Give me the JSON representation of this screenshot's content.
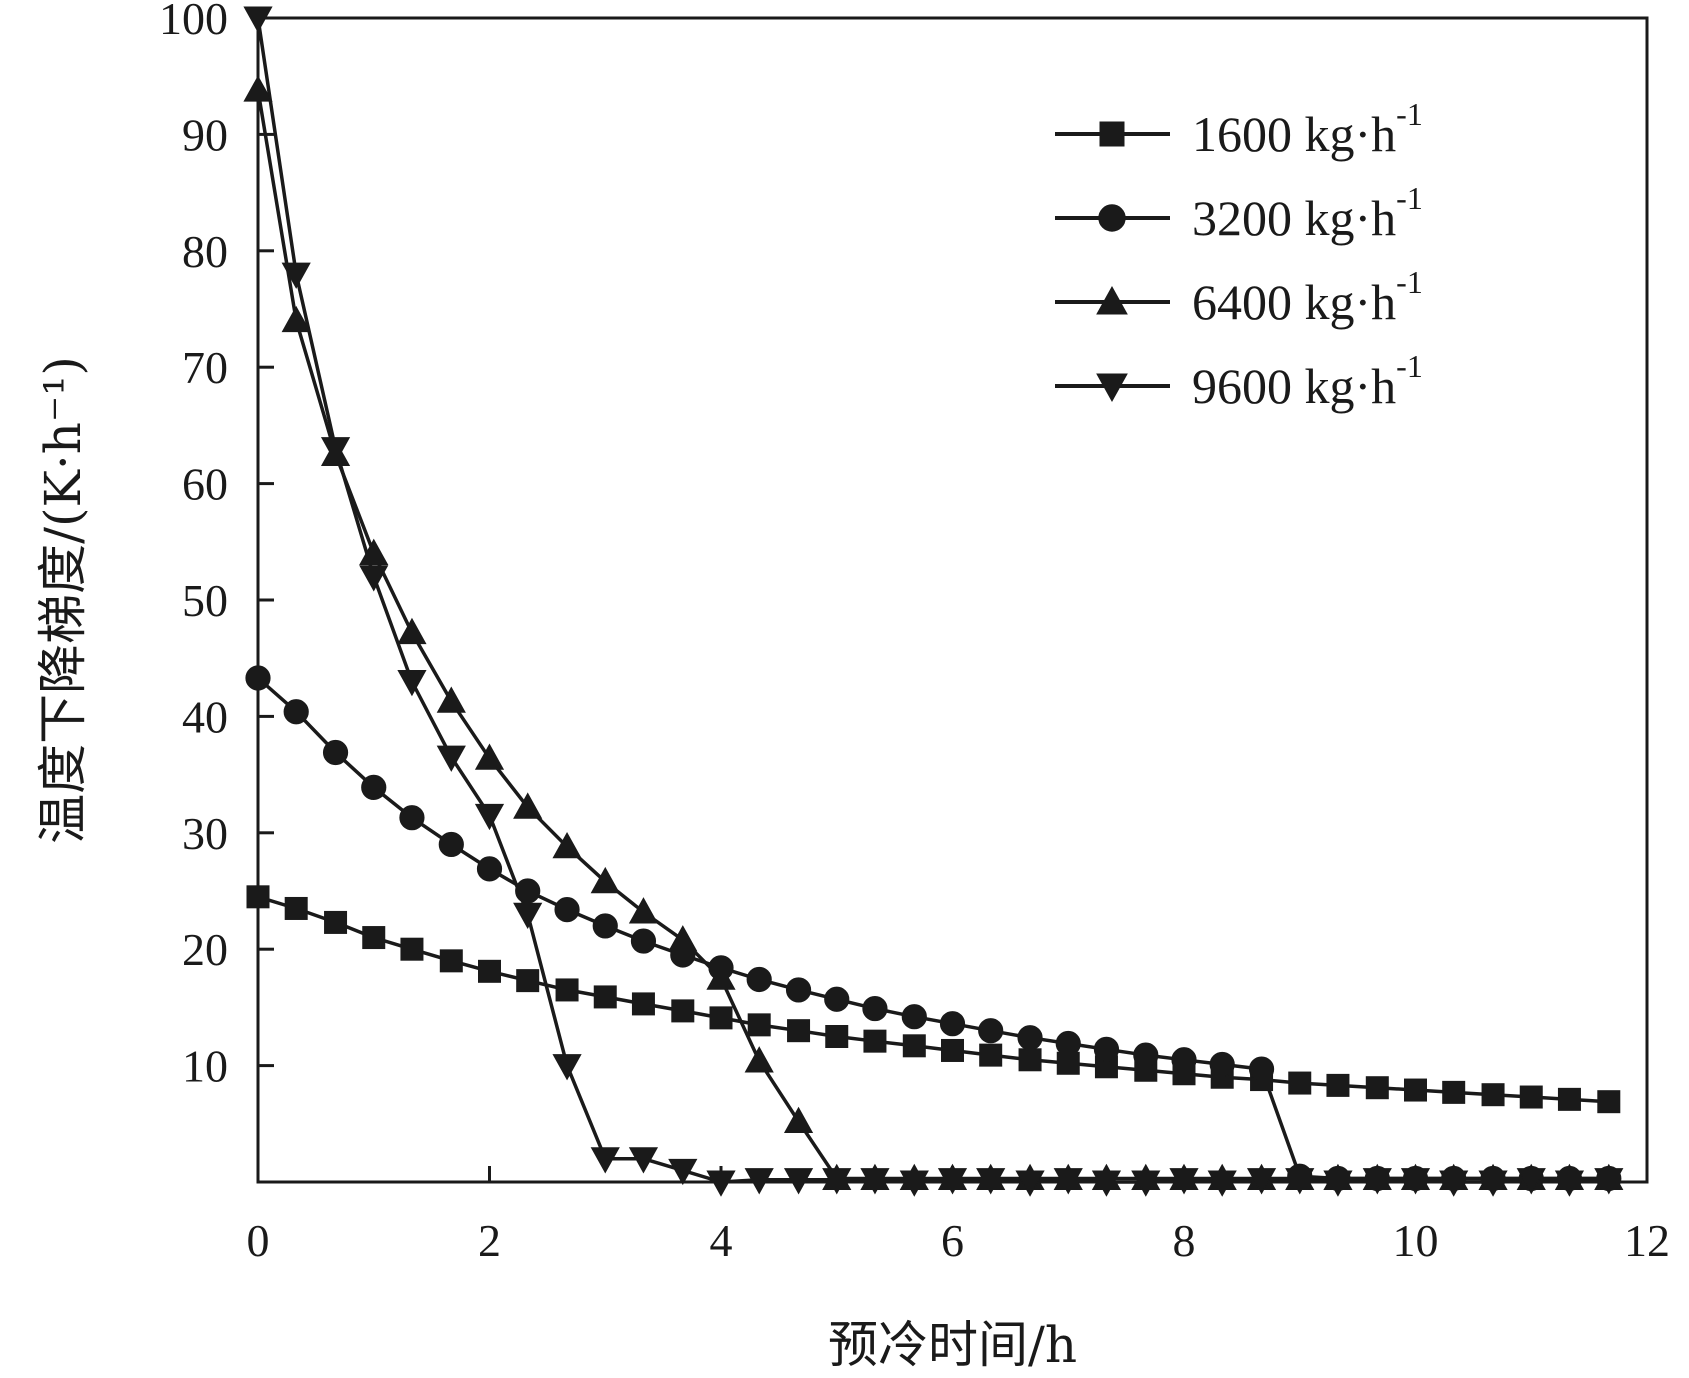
{
  "chart_data": {
    "type": "line",
    "title": "",
    "xlabel": "预冷时间/h",
    "ylabel": "温度下降梯度/(K·h⁻¹)",
    "xlim": [
      0,
      12
    ],
    "ylim": [
      0,
      100
    ],
    "xticks": [
      0,
      2,
      4,
      6,
      8,
      10,
      12
    ],
    "yticks": [
      10,
      20,
      30,
      40,
      50,
      60,
      70,
      80,
      90,
      100
    ],
    "grid": false,
    "legend_position": "top-right",
    "series": [
      {
        "name": "1600 kg·h",
        "name_superscript": "-1",
        "marker": "square",
        "x": [
          0.0,
          0.33,
          0.67,
          1.0,
          1.33,
          1.67,
          2.0,
          2.33,
          2.67,
          3.0,
          3.33,
          3.67,
          4.0,
          4.33,
          4.67,
          5.0,
          5.33,
          5.67,
          6.0,
          6.33,
          6.67,
          7.0,
          7.33,
          7.67,
          8.0,
          8.33,
          8.67,
          9.0,
          9.33,
          9.67,
          10.0,
          10.33,
          10.67,
          11.0,
          11.33,
          11.67
        ],
        "y": [
          24.5,
          23.5,
          22.3,
          21.0,
          20.0,
          19.0,
          18.1,
          17.3,
          16.5,
          15.9,
          15.3,
          14.7,
          14.1,
          13.5,
          13.0,
          12.5,
          12.1,
          11.7,
          11.3,
          10.9,
          10.5,
          10.2,
          9.9,
          9.6,
          9.3,
          9.0,
          8.8,
          8.5,
          8.3,
          8.1,
          7.9,
          7.7,
          7.5,
          7.3,
          7.1,
          6.9
        ]
      },
      {
        "name": "3200 kg·h",
        "name_superscript": "-1",
        "marker": "circle",
        "x": [
          0.0,
          0.33,
          0.67,
          1.0,
          1.33,
          1.67,
          2.0,
          2.33,
          2.67,
          3.0,
          3.33,
          3.67,
          4.0,
          4.33,
          4.67,
          5.0,
          5.33,
          5.67,
          6.0,
          6.33,
          6.67,
          7.0,
          7.33,
          7.67,
          8.0,
          8.33,
          8.67,
          9.0,
          9.33,
          9.67,
          10.0,
          10.33,
          10.67,
          11.0,
          11.33,
          11.67
        ],
        "y": [
          43.3,
          40.4,
          36.9,
          33.9,
          31.3,
          29.0,
          26.9,
          25.0,
          23.4,
          22.0,
          20.7,
          19.5,
          18.4,
          17.4,
          16.5,
          15.7,
          14.9,
          14.2,
          13.6,
          13.0,
          12.4,
          11.9,
          11.4,
          10.9,
          10.5,
          10.1,
          9.7,
          0.5,
          0.3,
          0.3,
          0.3,
          0.3,
          0.3,
          0.3,
          0.3,
          0.3
        ]
      },
      {
        "name": "6400 kg·h",
        "name_superscript": "-1",
        "marker": "triangle-up",
        "x": [
          0.0,
          0.33,
          0.67,
          1.0,
          1.33,
          1.67,
          2.0,
          2.33,
          2.67,
          3.0,
          3.33,
          3.67,
          4.0,
          4.33,
          4.67,
          5.0,
          5.33,
          5.67,
          6.0,
          6.33,
          6.67,
          7.0,
          7.33,
          7.67,
          8.0,
          8.33,
          8.67,
          9.0,
          9.33,
          9.67,
          10.0,
          10.33,
          10.67,
          11.0,
          11.33,
          11.67
        ],
        "y": [
          93.8,
          74.0,
          62.5,
          54.0,
          47.2,
          41.3,
          36.4,
          32.2,
          28.8,
          25.8,
          23.2,
          20.8,
          17.5,
          10.4,
          5.2,
          0.3,
          0.3,
          0.3,
          0.3,
          0.3,
          0.3,
          0.3,
          0.3,
          0.3,
          0.3,
          0.3,
          0.3,
          0.3,
          0.3,
          0.3,
          0.3,
          0.3,
          0.3,
          0.3,
          0.3,
          0.3
        ]
      },
      {
        "name": "9600 kg·h",
        "name_superscript": "-1",
        "marker": "triangle-down",
        "x": [
          0.0,
          0.33,
          0.67,
          1.0,
          1.33,
          1.67,
          2.0,
          2.33,
          2.67,
          3.0,
          3.33,
          3.67,
          4.0,
          4.33,
          4.67,
          5.0,
          5.33,
          5.67,
          6.0,
          6.33,
          6.67,
          7.0,
          7.33,
          7.67,
          8.0,
          8.33,
          8.67,
          9.0,
          9.33,
          9.67,
          10.0,
          10.33,
          10.67,
          11.0,
          11.33,
          11.67
        ],
        "y": [
          100.0,
          78.0,
          63.0,
          52.0,
          43.0,
          36.5,
          31.5,
          23.0,
          10.0,
          2.0,
          2.0,
          1.0,
          0.0,
          0.2,
          0.2,
          0.2,
          0.2,
          0.0,
          0.2,
          0.2,
          0.0,
          0.2,
          0.0,
          0.0,
          0.2,
          0.0,
          0.2,
          0.2,
          0.0,
          0.2,
          0.2,
          0.0,
          0.0,
          0.2,
          0.0,
          0.2
        ]
      }
    ]
  }
}
